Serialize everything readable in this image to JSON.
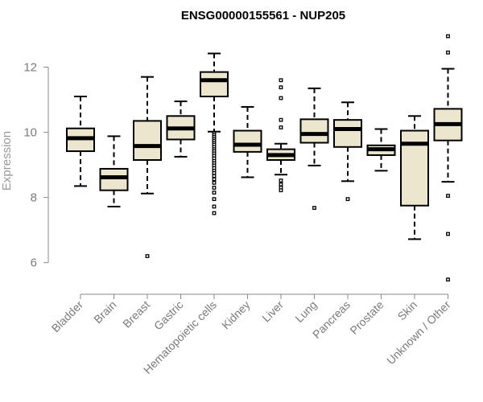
{
  "colors": {
    "box_fill": "#ede6cf",
    "stroke": "#000000",
    "axis": "#8a8a8a",
    "tick_text": "#7a7a7a"
  },
  "chart_data": {
    "type": "boxplot",
    "title": "ENSG00000155561 - NUP205",
    "xlabel": "",
    "ylabel": "Expression",
    "ylim": [
      5.3,
      13.0
    ],
    "yticks": [
      6,
      8,
      10,
      12
    ],
    "categories": [
      "Bladder",
      "Brain",
      "Breast",
      "Gastric",
      "Hematopoietic cells",
      "Kidney",
      "Liver",
      "Lung",
      "Pancreas",
      "Prostate",
      "Skin",
      "Unknown / Other"
    ],
    "boxes": [
      {
        "category": "Bladder",
        "whisker_low": 8.35,
        "q1": 9.42,
        "median": 9.82,
        "q3": 10.12,
        "whisker_high": 11.1,
        "outliers": []
      },
      {
        "category": "Brain",
        "whisker_low": 7.72,
        "q1": 8.22,
        "median": 8.62,
        "q3": 8.88,
        "whisker_high": 9.88,
        "outliers": []
      },
      {
        "category": "Breast",
        "whisker_low": 8.12,
        "q1": 9.15,
        "median": 9.58,
        "q3": 10.35,
        "whisker_high": 11.7,
        "outliers": [
          6.2
        ]
      },
      {
        "category": "Gastric",
        "whisker_low": 9.25,
        "q1": 9.78,
        "median": 10.12,
        "q3": 10.5,
        "whisker_high": 10.95,
        "outliers": []
      },
      {
        "category": "Hematopoietic cells",
        "whisker_low": 10.02,
        "q1": 11.1,
        "median": 11.6,
        "q3": 11.85,
        "whisker_high": 12.42,
        "outliers": [
          9.97,
          9.92,
          9.86,
          9.8,
          9.74,
          9.68,
          9.62,
          9.55,
          9.48,
          9.42,
          9.35,
          9.28,
          9.2,
          9.12,
          9.05,
          8.98,
          8.9,
          8.82,
          8.75,
          8.66,
          8.56,
          8.45,
          8.3,
          8.15,
          7.95,
          7.72,
          7.52
        ]
      },
      {
        "category": "Kidney",
        "whisker_low": 8.62,
        "q1": 9.4,
        "median": 9.62,
        "q3": 10.05,
        "whisker_high": 10.78,
        "outliers": []
      },
      {
        "category": "Liver",
        "whisker_low": 8.7,
        "q1": 9.15,
        "median": 9.3,
        "q3": 9.48,
        "whisker_high": 9.65,
        "outliers": [
          11.6,
          11.38,
          11.05,
          10.38,
          10.15,
          8.52,
          8.4,
          8.3,
          8.22
        ]
      },
      {
        "category": "Lung",
        "whisker_low": 8.98,
        "q1": 9.68,
        "median": 9.95,
        "q3": 10.4,
        "whisker_high": 11.35,
        "outliers": [
          7.68
        ]
      },
      {
        "category": "Pancreas",
        "whisker_low": 8.5,
        "q1": 9.55,
        "median": 10.1,
        "q3": 10.38,
        "whisker_high": 10.92,
        "outliers": [
          7.95
        ]
      },
      {
        "category": "Prostate",
        "whisker_low": 8.82,
        "q1": 9.3,
        "median": 9.48,
        "q3": 9.6,
        "whisker_high": 10.1,
        "outliers": []
      },
      {
        "category": "Skin",
        "whisker_low": 6.72,
        "q1": 7.75,
        "median": 9.65,
        "q3": 10.05,
        "whisker_high": 10.5,
        "outliers": []
      },
      {
        "category": "Unknown / Other",
        "whisker_low": 8.48,
        "q1": 9.75,
        "median": 10.25,
        "q3": 10.72,
        "whisker_high": 11.95,
        "outliers": [
          12.95,
          12.45,
          8.05,
          6.88,
          5.48
        ]
      }
    ]
  }
}
